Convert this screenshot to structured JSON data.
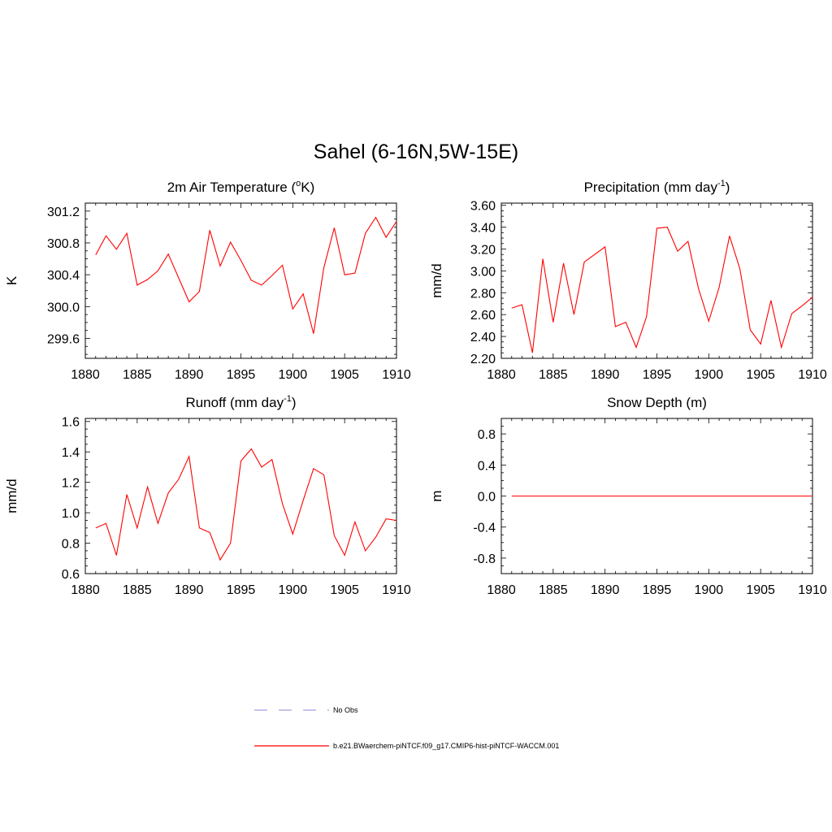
{
  "title": "Sahel (6-16N,5W-15E)",
  "line_color": "#ff0000",
  "obs_color": "#a0a0e0",
  "legend": {
    "obs_label": "No Obs",
    "model_label": "b.e21.BWaerchem-piNTCF.f09_g17.CMIP6-hist-piNTCF-WACCM.001"
  },
  "chart_data": [
    {
      "type": "line",
      "title": "2m Air Temperature (",
      "title_sup": "o",
      "title_tail": "K)",
      "ylabel": "K",
      "xlim": [
        1880,
        1910
      ],
      "ylim": [
        299.35,
        301.3
      ],
      "x_ticks": [
        "1880",
        "1885",
        "1890",
        "1895",
        "1900",
        "1905",
        "1910"
      ],
      "y_ticks": [
        299.6,
        300.0,
        300.4,
        300.8,
        301.2
      ],
      "y_tick_labels": [
        "299.6",
        "300.0",
        "300.4",
        "300.8",
        "301.2"
      ],
      "y_minor_step": 0.1,
      "x": [
        1881,
        1882,
        1883,
        1884,
        1885,
        1886,
        1887,
        1888,
        1889,
        1890,
        1891,
        1892,
        1893,
        1894,
        1895,
        1896,
        1897,
        1898,
        1899,
        1900,
        1901,
        1902,
        1903,
        1904,
        1905,
        1906,
        1907,
        1908,
        1909,
        1910
      ],
      "values": [
        300.65,
        300.89,
        300.72,
        300.92,
        300.27,
        300.34,
        300.45,
        300.66,
        300.36,
        300.06,
        300.19,
        300.96,
        300.51,
        300.81,
        300.58,
        300.33,
        300.27,
        300.39,
        300.52,
        299.97,
        300.16,
        299.66,
        300.49,
        300.99,
        300.4,
        300.42,
        300.92,
        301.12,
        300.87,
        301.07
      ]
    },
    {
      "type": "line",
      "title": "Precipitation (mm day",
      "title_sup": "-1",
      "title_tail": ")",
      "ylabel": "mm/d",
      "xlim": [
        1880,
        1910
      ],
      "ylim": [
        2.2,
        3.62
      ],
      "x_ticks": [
        "1880",
        "1885",
        "1890",
        "1895",
        "1900",
        "1905",
        "1910"
      ],
      "y_ticks": [
        2.2,
        2.4,
        2.6,
        2.8,
        3.0,
        3.2,
        3.4,
        3.6
      ],
      "y_tick_labels": [
        "2.20",
        "2.40",
        "2.60",
        "2.80",
        "3.00",
        "3.20",
        "3.40",
        "3.60"
      ],
      "y_minor_step": 0.05,
      "x": [
        1881,
        1882,
        1883,
        1884,
        1885,
        1886,
        1887,
        1888,
        1889,
        1890,
        1891,
        1892,
        1893,
        1894,
        1895,
        1896,
        1897,
        1898,
        1899,
        1900,
        1901,
        1902,
        1903,
        1904,
        1905,
        1906,
        1907,
        1908,
        1909,
        1910
      ],
      "values": [
        2.66,
        2.69,
        2.25,
        3.11,
        2.53,
        3.07,
        2.6,
        3.08,
        3.15,
        3.22,
        2.49,
        2.53,
        2.3,
        2.58,
        3.39,
        3.4,
        3.18,
        3.27,
        2.84,
        2.54,
        2.85,
        3.32,
        3.02,
        2.46,
        2.33,
        2.73,
        2.3,
        2.61,
        2.68,
        2.76
      ]
    },
    {
      "type": "line",
      "title": "Runoff (mm day",
      "title_sup": "-1",
      "title_tail": ")",
      "ylabel": "mm/d",
      "xlim": [
        1880,
        1910
      ],
      "ylim": [
        0.6,
        1.62
      ],
      "x_ticks": [
        "1880",
        "1885",
        "1890",
        "1895",
        "1900",
        "1905",
        "1910"
      ],
      "y_ticks": [
        0.6,
        0.8,
        1.0,
        1.2,
        1.4,
        1.6
      ],
      "y_tick_labels": [
        "0.6",
        "0.8",
        "1.0",
        "1.2",
        "1.4",
        "1.6"
      ],
      "y_minor_step": 0.05,
      "x": [
        1881,
        1882,
        1883,
        1884,
        1885,
        1886,
        1887,
        1888,
        1889,
        1890,
        1891,
        1892,
        1893,
        1894,
        1895,
        1896,
        1897,
        1898,
        1899,
        1900,
        1901,
        1902,
        1903,
        1904,
        1905,
        1906,
        1907,
        1908,
        1909,
        1910
      ],
      "values": [
        0.9,
        0.93,
        0.72,
        1.12,
        0.9,
        1.17,
        0.93,
        1.13,
        1.22,
        1.37,
        0.9,
        0.87,
        0.69,
        0.8,
        1.34,
        1.42,
        1.3,
        1.35,
        1.06,
        0.86,
        1.08,
        1.29,
        1.25,
        0.85,
        0.72,
        0.94,
        0.75,
        0.84,
        0.96,
        0.95
      ]
    },
    {
      "type": "line",
      "title": "Snow Depth (m)",
      "title_sup": "",
      "title_tail": "",
      "ylabel": "m",
      "xlim": [
        1880,
        1910
      ],
      "ylim": [
        -1.0,
        1.0
      ],
      "x_ticks": [
        "1880",
        "1885",
        "1890",
        "1895",
        "1900",
        "1905",
        "1910"
      ],
      "y_ticks": [
        -0.8,
        -0.4,
        0.0,
        0.4,
        0.8
      ],
      "y_tick_labels": [
        "-0.8",
        "-0.4",
        "0.0",
        "0.4",
        "0.8"
      ],
      "y_minor_step": 0.1,
      "x": [
        1881,
        1882,
        1883,
        1884,
        1885,
        1886,
        1887,
        1888,
        1889,
        1890,
        1891,
        1892,
        1893,
        1894,
        1895,
        1896,
        1897,
        1898,
        1899,
        1900,
        1901,
        1902,
        1903,
        1904,
        1905,
        1906,
        1907,
        1908,
        1909,
        1910
      ],
      "values": [
        0,
        0,
        0,
        0,
        0,
        0,
        0,
        0,
        0,
        0,
        0,
        0,
        0,
        0,
        0,
        0,
        0,
        0,
        0,
        0,
        0,
        0,
        0,
        0,
        0,
        0,
        0,
        0,
        0,
        0
      ]
    }
  ]
}
